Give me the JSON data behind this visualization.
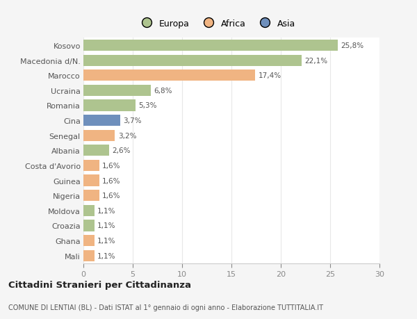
{
  "categories": [
    "Kosovo",
    "Macedonia d/N.",
    "Marocco",
    "Ucraina",
    "Romania",
    "Cina",
    "Senegal",
    "Albania",
    "Costa d'Avorio",
    "Guinea",
    "Nigeria",
    "Moldova",
    "Croazia",
    "Ghana",
    "Mali"
  ],
  "values": [
    25.8,
    22.1,
    17.4,
    6.8,
    5.3,
    3.7,
    3.2,
    2.6,
    1.6,
    1.6,
    1.6,
    1.1,
    1.1,
    1.1,
    1.1
  ],
  "labels": [
    "25,8%",
    "22,1%",
    "17,4%",
    "6,8%",
    "5,3%",
    "3,7%",
    "3,2%",
    "2,6%",
    "1,6%",
    "1,6%",
    "1,6%",
    "1,1%",
    "1,1%",
    "1,1%",
    "1,1%"
  ],
  "continents": [
    "Europa",
    "Europa",
    "Africa",
    "Europa",
    "Europa",
    "Asia",
    "Africa",
    "Europa",
    "Africa",
    "Africa",
    "Africa",
    "Europa",
    "Europa",
    "Africa",
    "Africa"
  ],
  "colors": {
    "Europa": "#aec48f",
    "Africa": "#f0b482",
    "Asia": "#6e8fbc"
  },
  "bg_color": "#f5f5f5",
  "plot_bg_color": "#ffffff",
  "grid_color": "#e8e8e8",
  "title": "Cittadini Stranieri per Cittadinanza",
  "subtitle": "COMUNE DI LENTIAI (BL) - Dati ISTAT al 1° gennaio di ogni anno - Elaborazione TUTTITALIA.IT",
  "xlim": [
    0,
    30
  ],
  "xticks": [
    0,
    5,
    10,
    15,
    20,
    25,
    30
  ]
}
